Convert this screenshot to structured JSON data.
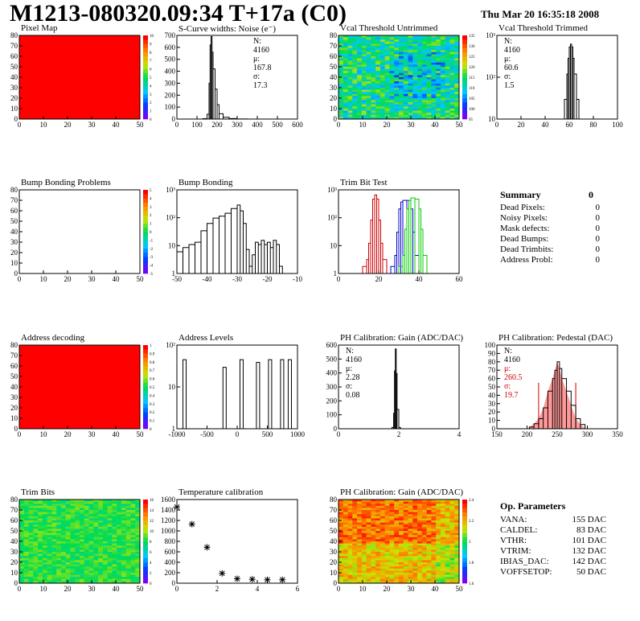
{
  "header": {
    "title": "M1213-080320.09:34 T+17a (C0)",
    "date": "Thu Mar 20 16:35:18 2008"
  },
  "colors": {
    "map_red": "#ff0000",
    "hist_line": "#000000",
    "trim_red": "#cc0000",
    "trim_blue": "#0000cc",
    "trim_green": "#00cc00",
    "pedestal_fill": "#ff9999",
    "stat_red": "#cc0000"
  },
  "panels": {
    "pixel_map": {
      "title": "Pixel Map",
      "type": "heatmap",
      "fill": "uniform",
      "x_ticks": [
        "0",
        "10",
        "20",
        "30",
        "40",
        "50"
      ],
      "y_ticks": [
        "0",
        "10",
        "20",
        "30",
        "40",
        "50",
        "60",
        "70",
        "80"
      ],
      "z_ticks": [
        "0",
        "1",
        "2",
        "3",
        "4",
        "5",
        "6",
        "7",
        "8",
        "9",
        "10"
      ]
    },
    "noise": {
      "title": "S-Curve widths: Noise (e⁻)",
      "stat": {
        "n": "N: 4160",
        "mu": "μ: 167.8",
        "sigma": "σ: 17.3"
      },
      "x_ticks": [
        "0",
        "100",
        "200",
        "300",
        "400",
        "500",
        "600"
      ],
      "y_ticks": [
        "0",
        "100",
        "200",
        "300",
        "400",
        "500",
        "600",
        "700"
      ]
    },
    "vcal_untrimmed": {
      "title": "Vcal Threshold Untrimmed",
      "type": "heatmap",
      "fill": "random",
      "x_ticks": [
        "0",
        "10",
        "20",
        "30",
        "40",
        "50"
      ],
      "y_ticks": [
        "0",
        "10",
        "20",
        "30",
        "40",
        "50",
        "60",
        "70",
        "80"
      ],
      "z_ticks": [
        "95",
        "100",
        "105",
        "110",
        "115",
        "120",
        "125",
        "130",
        "135"
      ]
    },
    "vcal_trimmed": {
      "title": "Vcal Threshold Trimmed",
      "stat": {
        "n": "N: 4160",
        "mu": "μ: 60.6",
        "sigma": "σ:  1.5"
      },
      "x_ticks": [
        "0",
        "20",
        "40",
        "60",
        "80",
        "100"
      ],
      "y_ticks": [
        "10",
        "10²",
        "10³"
      ]
    },
    "bump_problems": {
      "title": "Bump Bonding Problems",
      "type": "heatmap",
      "fill": "empty",
      "x_ticks": [
        "0",
        "10",
        "20",
        "30",
        "40",
        "50"
      ],
      "y_ticks": [
        "0",
        "10",
        "20",
        "30",
        "40",
        "50",
        "60",
        "70",
        "80"
      ],
      "z_ticks": [
        "-5",
        "-4",
        "-3",
        "-2",
        "-1",
        "0",
        "1",
        "2",
        "3",
        "4",
        "5"
      ]
    },
    "bump_bonding": {
      "title": "Bump Bonding",
      "x_ticks": [
        "-50",
        "-40",
        "-30",
        "-20",
        "-10"
      ],
      "y_ticks": [
        "1",
        "10",
        "10²",
        "10³"
      ]
    },
    "trim_bit_test": {
      "title": "Trim Bit Test",
      "x_ticks": [
        "0",
        "20",
        "40",
        "60"
      ],
      "y_ticks": [
        "1",
        "10",
        "10²",
        "10³"
      ]
    },
    "address_decoding": {
      "title": "Address decoding",
      "type": "heatmap",
      "fill": "uniform",
      "x_ticks": [
        "0",
        "10",
        "20",
        "30",
        "40",
        "50"
      ],
      "y_ticks": [
        "0",
        "10",
        "20",
        "30",
        "40",
        "50",
        "60",
        "70",
        "80"
      ],
      "z_ticks": [
        "0",
        "0.1",
        "0.2",
        "0.3",
        "0.4",
        "0.5",
        "0.6",
        "0.7",
        "0.8",
        "0.9",
        "1"
      ]
    },
    "address_levels": {
      "title": "Address Levels",
      "x_ticks": [
        "-1000",
        "-500",
        "0",
        "500",
        "1000"
      ],
      "y_ticks": [
        "1",
        "10",
        "10²"
      ]
    },
    "ph_gain": {
      "title": "PH Calibration: Gain (ADC/DAC)",
      "stat": {
        "n": "N: 4160",
        "mu": "μ: 2.28",
        "sigma": "σ: 0.08"
      },
      "x_ticks": [
        "0",
        "2",
        "4"
      ],
      "y_ticks": [
        "0",
        "100",
        "200",
        "300",
        "400",
        "500",
        "600"
      ]
    },
    "ph_pedestal": {
      "title": "PH Calibration: Pedestal (DAC)",
      "stat": {
        "n": "N: 4160",
        "mu": "μ: 260.5",
        "sigma": "σ: 19.7"
      },
      "x_ticks": [
        "150",
        "200",
        "250",
        "300",
        "350"
      ],
      "y_ticks": [
        "0",
        "10",
        "20",
        "30",
        "40",
        "50",
        "60",
        "70",
        "80",
        "90",
        "100"
      ]
    },
    "trim_bits": {
      "title": "Trim Bits",
      "type": "heatmap",
      "fill": "random_green",
      "x_ticks": [
        "0",
        "10",
        "20",
        "30",
        "40",
        "50"
      ],
      "y_ticks": [
        "0",
        "10",
        "20",
        "30",
        "40",
        "50",
        "60",
        "70",
        "80"
      ],
      "z_ticks": [
        "0",
        "2",
        "4",
        "6",
        "8",
        "10",
        "12",
        "14",
        "16"
      ]
    },
    "temperature": {
      "title": "Temperature calibration",
      "x_ticks": [
        "0",
        "2",
        "4",
        "6"
      ],
      "y_ticks": [
        "0",
        "200",
        "400",
        "600",
        "800",
        "1000",
        "1200",
        "1400",
        "1600"
      ]
    },
    "ph_gain_map": {
      "title": "PH Calibration: Gain (ADC/DAC)",
      "type": "heatmap",
      "fill": "random_warm",
      "x_ticks": [
        "0",
        "10",
        "20",
        "30",
        "40",
        "50"
      ],
      "y_ticks": [
        "0",
        "10",
        "20",
        "30",
        "40",
        "50",
        "60",
        "70",
        "80"
      ],
      "z_ticks": [
        "1.6",
        "1.8",
        "2",
        "2.2",
        "2.4"
      ]
    }
  },
  "chart_data": [
    {
      "type": "line",
      "name": "noise",
      "x": [
        100,
        130,
        150,
        160,
        165,
        170,
        175,
        180,
        190,
        200,
        210,
        230,
        260,
        300,
        350
      ],
      "y": [
        0,
        3,
        40,
        300,
        620,
        690,
        560,
        420,
        250,
        120,
        45,
        15,
        4,
        1,
        0
      ],
      "xlim": [
        0,
        600
      ],
      "ylim": [
        0,
        700
      ]
    },
    {
      "type": "line",
      "name": "vcal_trimmed",
      "x": [
        54,
        56,
        58,
        59,
        60,
        61,
        62,
        63,
        64,
        66,
        68
      ],
      "y": [
        1,
        6,
        60,
        250,
        700,
        900,
        700,
        250,
        60,
        6,
        1
      ],
      "xlim": [
        0,
        100
      ],
      "ylog": true,
      "ylim": [
        1,
        2000
      ]
    },
    {
      "type": "line",
      "name": "bump_bonding",
      "x": [
        -50,
        -48,
        -46,
        -44,
        -42,
        -40,
        -38,
        -36,
        -34,
        -32,
        -30,
        -29,
        -28,
        -27,
        -26,
        -25,
        -24,
        -23,
        -22,
        -21,
        -20,
        -19,
        -18,
        -17,
        -16,
        -15
      ],
      "y": [
        4,
        6,
        8,
        10,
        30,
        60,
        100,
        120,
        160,
        250,
        350,
        200,
        60,
        5,
        1,
        3,
        10,
        8,
        12,
        8,
        10,
        6,
        12,
        8,
        1,
        1
      ],
      "xlim": [
        -50,
        -10
      ],
      "ylog": true,
      "ylim": [
        0.5,
        1500
      ]
    },
    {
      "type": "line",
      "name": "trim_bit_test",
      "series": [
        {
          "name": "red",
          "x": [
            12,
            14,
            15,
            16,
            17,
            18,
            19,
            20,
            21,
            22,
            24
          ],
          "y": [
            1,
            2,
            10,
            100,
            800,
            1200,
            800,
            100,
            10,
            2,
            1
          ]
        },
        {
          "name": "blue",
          "x": [
            26,
            28,
            29,
            30,
            31,
            32,
            34,
            36,
            37,
            38,
            40
          ],
          "y": [
            1,
            3,
            30,
            300,
            600,
            700,
            700,
            300,
            30,
            3,
            1
          ]
        },
        {
          "name": "green",
          "x": [
            30,
            32,
            33,
            34,
            35,
            36,
            38,
            40,
            41,
            42,
            44
          ],
          "y": [
            1,
            3,
            40,
            300,
            700,
            900,
            800,
            300,
            40,
            3,
            1
          ]
        }
      ],
      "xlim": [
        0,
        60
      ],
      "ylog": true,
      "ylim": [
        0.5,
        2000
      ]
    },
    {
      "type": "line",
      "name": "address_levels",
      "peaks": [
        -960,
        -230,
        80,
        380,
        600,
        820,
        960
      ],
      "heights": [
        150,
        80,
        150,
        120,
        150,
        150,
        150
      ],
      "xlim": [
        -1100,
        1100
      ],
      "ylog": true,
      "ylim": [
        0.5,
        500
      ]
    },
    {
      "type": "line",
      "name": "ph_gain",
      "x": [
        1.9,
        2.1,
        2.2,
        2.25,
        2.3,
        2.35,
        2.4,
        2.5,
        2.6
      ],
      "y": [
        0,
        10,
        120,
        450,
        620,
        430,
        150,
        10,
        0
      ],
      "xlim": [
        -1,
        6
      ],
      "ylim": [
        0,
        650
      ]
    },
    {
      "type": "line",
      "name": "ph_pedestal",
      "x": [
        200,
        210,
        220,
        230,
        240,
        250,
        255,
        260,
        265,
        270,
        280,
        290,
        300,
        310,
        320
      ],
      "y": [
        2,
        6,
        12,
        25,
        45,
        60,
        70,
        80,
        72,
        60,
        45,
        28,
        12,
        5,
        1
      ],
      "xlim": [
        130,
        390
      ],
      "ylim": [
        0,
        100
      ]
    },
    {
      "type": "scatter",
      "name": "temperature",
      "x": [
        0,
        1,
        2,
        3,
        4,
        5,
        6,
        7
      ],
      "y": [
        1550,
        1200,
        730,
        200,
        90,
        80,
        70,
        70
      ],
      "xlim": [
        0,
        8
      ],
      "ylim": [
        0,
        1700
      ]
    }
  ],
  "summary": {
    "title": "Summary",
    "value": "0",
    "rows": [
      {
        "label": "Dead Pixels:",
        "value": "0"
      },
      {
        "label": "Noisy Pixels:",
        "value": "0"
      },
      {
        "label": "Mask defects:",
        "value": "0"
      },
      {
        "label": "Dead Bumps:",
        "value": "0"
      },
      {
        "label": "Dead Trimbits:",
        "value": "0"
      },
      {
        "label": "Address Probl:",
        "value": "0"
      }
    ]
  },
  "op_params": {
    "title": "Op. Parameters",
    "rows": [
      {
        "label": "VANA:",
        "value": "155 DAC"
      },
      {
        "label": "CALDEL:",
        "value": "83 DAC"
      },
      {
        "label": "VTHR:",
        "value": "101 DAC"
      },
      {
        "label": "VTRIM:",
        "value": "132 DAC"
      },
      {
        "label": "IBIAS_DAC:",
        "value": "142 DAC"
      },
      {
        "label": "VOFFSETOP:",
        "value": "50 DAC"
      }
    ]
  }
}
